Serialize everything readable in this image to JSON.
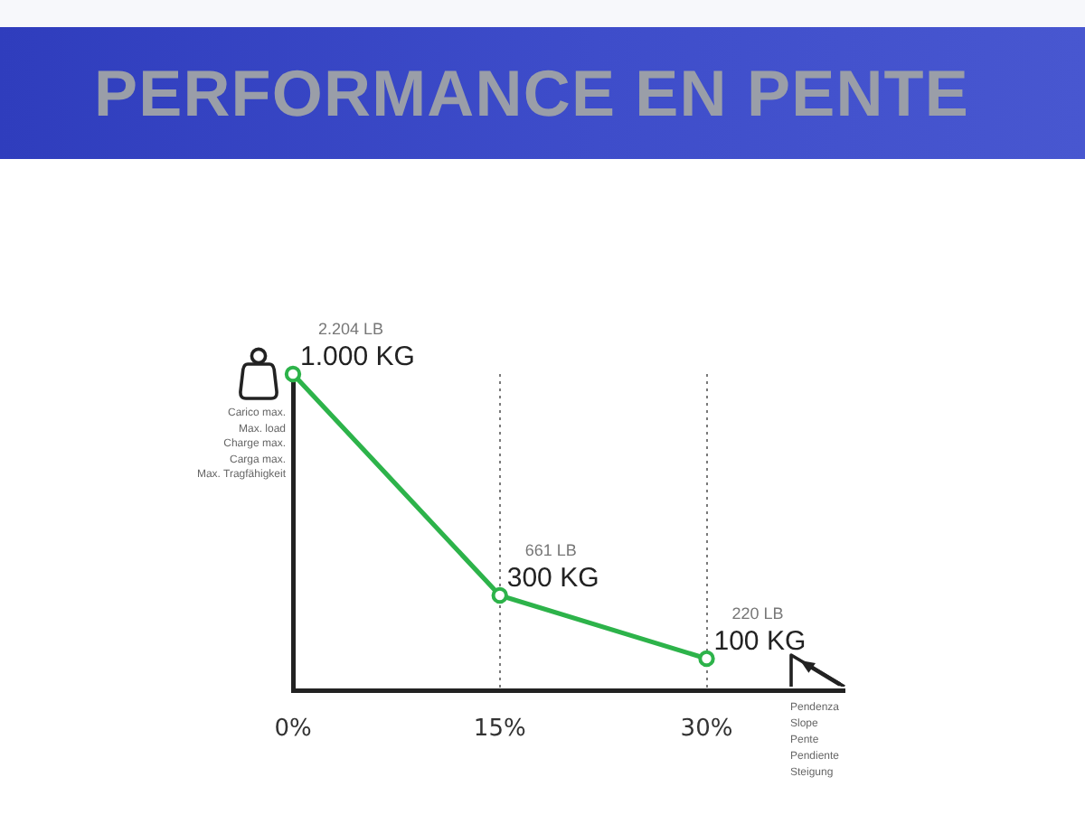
{
  "chart_data": {
    "type": "line",
    "title": "PERFORMANCE EN PENTE",
    "xlabel": "Pendenza\nSlope\nPente\nPendiente\nSteigung",
    "ylabel": "Carico max.\nMax. load\nCharge max.\nCarga max.\nMax. Tragfähigkeit",
    "x": [
      0,
      15,
      30
    ],
    "values": [
      1000,
      300,
      100
    ],
    "color": "#2db34a",
    "value_labels": [
      "1.000 KG",
      "300 KG",
      "100 KG"
    ],
    "annotations": [
      {
        "text": "2.204 LB",
        "x": 0,
        "y": 1000
      },
      {
        "text": "661 LB",
        "x": 15,
        "y": 300
      },
      {
        "text": "220 LB",
        "x": 30,
        "y": 100
      }
    ],
    "xlim": [
      0,
      40
    ],
    "xticks": [
      {
        "value": 0,
        "label": "0%"
      },
      {
        "value": 15,
        "label": "15%"
      },
      {
        "value": 30,
        "label": "30%"
      }
    ],
    "ylim": [
      0,
      1000
    ],
    "grid": "x",
    "tick_labels": "x",
    "marker": "circle",
    "line_style": "solid"
  }
}
